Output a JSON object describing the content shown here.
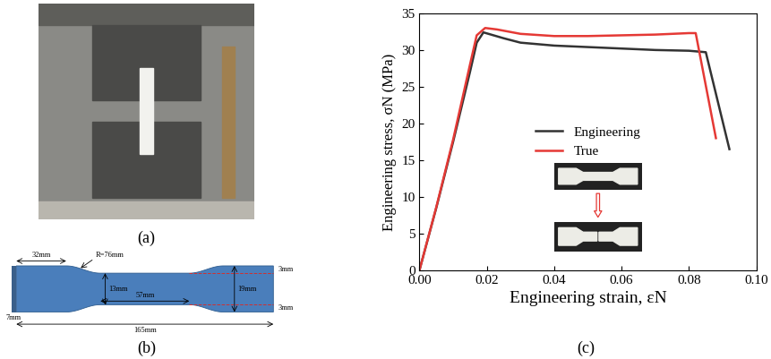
{
  "panel_labels": [
    "(a)",
    "(b)",
    "(c)"
  ],
  "specimen_diagram": {
    "dimensions": [
      "32mm",
      "R=76mm",
      "3mm",
      "13mm",
      "19mm",
      "57mm",
      "3mm",
      "7mm",
      "165mm"
    ]
  },
  "chart_data": {
    "type": "line",
    "x_label": "Engineering strain, εN",
    "y_label": "Engineering stress, σN (MPa)",
    "xlim": [
      0.0,
      0.1
    ],
    "ylim": [
      0,
      35
    ],
    "xticks": [
      {
        "value": 0.0,
        "label": "0.00"
      },
      {
        "value": 0.02,
        "label": "0.02"
      },
      {
        "value": 0.04,
        "label": "0.04"
      },
      {
        "value": 0.06,
        "label": "0.06"
      },
      {
        "value": 0.08,
        "label": "0.08"
      },
      {
        "value": 0.1,
        "label": "0.10"
      }
    ],
    "yticks": [
      0,
      5,
      10,
      15,
      20,
      25,
      30,
      35
    ],
    "legend": "center",
    "series": [
      {
        "name": "Engineering",
        "color": "#333333",
        "x": [
          0.0,
          0.005,
          0.01,
          0.015,
          0.017,
          0.019,
          0.022,
          0.025,
          0.03,
          0.04,
          0.05,
          0.06,
          0.07,
          0.08,
          0.085,
          0.092
        ],
        "values": [
          0.0,
          8.5,
          17.5,
          27.0,
          31.0,
          32.4,
          32.0,
          31.6,
          31.0,
          30.6,
          30.4,
          30.2,
          30.0,
          29.9,
          29.7,
          16.5
        ]
      },
      {
        "name": "True",
        "color": "#e53935",
        "x": [
          0.0,
          0.005,
          0.01,
          0.015,
          0.017,
          0.0195,
          0.023,
          0.03,
          0.04,
          0.05,
          0.06,
          0.07,
          0.08,
          0.082,
          0.088
        ],
        "values": [
          0.0,
          8.6,
          17.8,
          28.0,
          32.0,
          33.0,
          32.8,
          32.2,
          31.9,
          31.9,
          32.0,
          32.1,
          32.3,
          32.3,
          18.0
        ]
      }
    ]
  }
}
